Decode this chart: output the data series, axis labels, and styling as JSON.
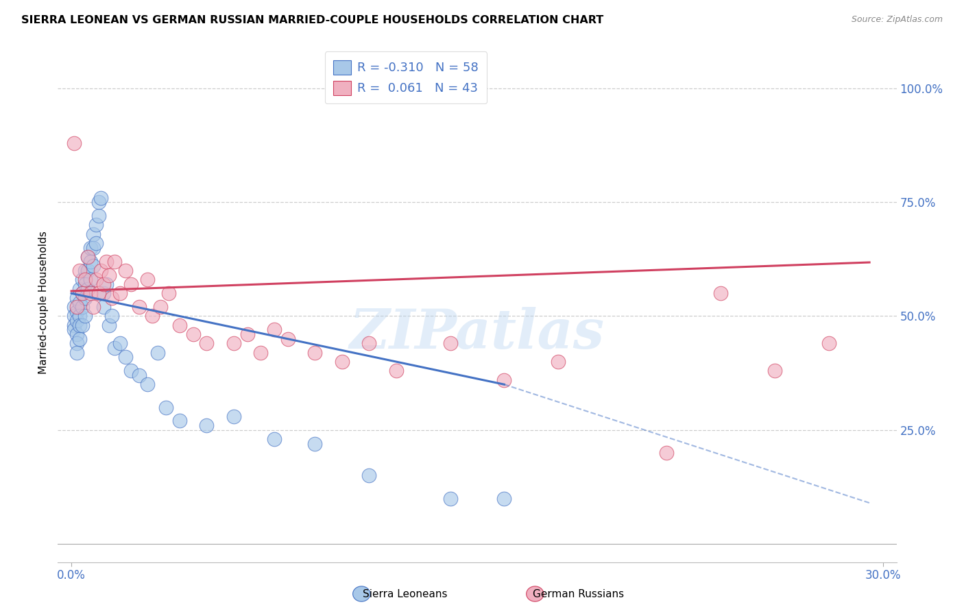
{
  "title": "SIERRA LEONEAN VS GERMAN RUSSIAN MARRIED-COUPLE HOUSEHOLDS CORRELATION CHART",
  "source": "Source: ZipAtlas.com",
  "ylabel": "Married-couple Households",
  "legend_blue_R": "-0.310",
  "legend_blue_N": "58",
  "legend_pink_R": "0.061",
  "legend_pink_N": "43",
  "blue_color": "#a8c8e8",
  "pink_color": "#f0b0c0",
  "trendline_blue": "#4472c4",
  "trendline_pink": "#d04060",
  "label_color": "#4472c4",
  "grid_color": "#c8c8c8",
  "watermark": "ZIPatlas",
  "sierra_x": [
    0.001,
    0.001,
    0.001,
    0.001,
    0.002,
    0.002,
    0.002,
    0.002,
    0.002,
    0.002,
    0.003,
    0.003,
    0.003,
    0.003,
    0.003,
    0.004,
    0.004,
    0.004,
    0.004,
    0.005,
    0.005,
    0.005,
    0.005,
    0.006,
    0.006,
    0.006,
    0.007,
    0.007,
    0.007,
    0.008,
    0.008,
    0.008,
    0.009,
    0.009,
    0.01,
    0.01,
    0.011,
    0.012,
    0.012,
    0.013,
    0.014,
    0.015,
    0.016,
    0.018,
    0.02,
    0.022,
    0.025,
    0.028,
    0.032,
    0.035,
    0.04,
    0.05,
    0.06,
    0.075,
    0.09,
    0.11,
    0.14,
    0.16
  ],
  "sierra_y": [
    0.52,
    0.5,
    0.48,
    0.47,
    0.54,
    0.51,
    0.49,
    0.46,
    0.44,
    0.42,
    0.56,
    0.53,
    0.5,
    0.48,
    0.45,
    0.58,
    0.55,
    0.52,
    0.48,
    0.6,
    0.57,
    0.54,
    0.5,
    0.63,
    0.6,
    0.56,
    0.65,
    0.62,
    0.58,
    0.68,
    0.65,
    0.61,
    0.7,
    0.66,
    0.72,
    0.75,
    0.76,
    0.55,
    0.52,
    0.57,
    0.48,
    0.5,
    0.43,
    0.44,
    0.41,
    0.38,
    0.37,
    0.35,
    0.42,
    0.3,
    0.27,
    0.26,
    0.28,
    0.23,
    0.22,
    0.15,
    0.1,
    0.1
  ],
  "german_x": [
    0.001,
    0.002,
    0.003,
    0.004,
    0.005,
    0.006,
    0.007,
    0.008,
    0.009,
    0.01,
    0.011,
    0.012,
    0.013,
    0.014,
    0.015,
    0.016,
    0.018,
    0.02,
    0.022,
    0.025,
    0.028,
    0.03,
    0.033,
    0.036,
    0.04,
    0.045,
    0.05,
    0.06,
    0.065,
    0.07,
    0.075,
    0.08,
    0.09,
    0.1,
    0.11,
    0.12,
    0.14,
    0.16,
    0.18,
    0.22,
    0.24,
    0.26,
    0.28
  ],
  "german_y": [
    0.88,
    0.52,
    0.6,
    0.55,
    0.58,
    0.63,
    0.55,
    0.52,
    0.58,
    0.55,
    0.6,
    0.57,
    0.62,
    0.59,
    0.54,
    0.62,
    0.55,
    0.6,
    0.57,
    0.52,
    0.58,
    0.5,
    0.52,
    0.55,
    0.48,
    0.46,
    0.44,
    0.44,
    0.46,
    0.42,
    0.47,
    0.45,
    0.42,
    0.4,
    0.44,
    0.38,
    0.44,
    0.36,
    0.4,
    0.2,
    0.55,
    0.38,
    0.44
  ],
  "xmin": 0.0,
  "xmax": 0.3,
  "ymin": 0.0,
  "ymax": 1.0,
  "yticks": [
    0.0,
    0.25,
    0.5,
    0.75,
    1.0
  ],
  "ytick_labels": [
    "",
    "25.0%",
    "50.0%",
    "75.0%",
    "100.0%"
  ],
  "xtick_labels": [
    "0.0%",
    "30.0%"
  ]
}
